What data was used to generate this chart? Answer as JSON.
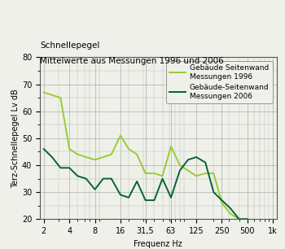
{
  "title_line1": "Schnellepegel",
  "title_line2": "Mittelwerte aus Messungen 1996 und 2006",
  "xlabel": "Frequenz Hz",
  "ylabel": "Terz-Schnellepegel Lv dB",
  "ylim": [
    20,
    80
  ],
  "frequencies": [
    2,
    2.5,
    3.15,
    4,
    5,
    6.3,
    8,
    10,
    12.5,
    16,
    20,
    25,
    31.5,
    40,
    50,
    63,
    80,
    100,
    125,
    160,
    200,
    250,
    315,
    400,
    500
  ],
  "line1996": [
    67,
    66,
    65,
    46,
    44,
    43,
    42,
    43,
    44,
    51,
    46,
    44,
    37,
    37,
    36,
    47,
    40,
    38,
    36,
    37,
    37,
    26,
    22,
    20,
    20
  ],
  "line2006": [
    46,
    43,
    39,
    39,
    36,
    35,
    31,
    35,
    35,
    29,
    28,
    34,
    27,
    27,
    35,
    28,
    38,
    42,
    43,
    41,
    30,
    27,
    24,
    20,
    20
  ],
  "color1996": "#99cc33",
  "color2006": "#006633",
  "legend1": "Gebäude Seitenwand\nMessungen 1996",
  "legend2": "Gebäude-Seitenwand\nMessungen 2006",
  "xtick_labels": [
    "2",
    "4",
    "8",
    "16",
    "31,5",
    "63",
    "125",
    "250",
    "500",
    "1k"
  ],
  "xtick_freqs": [
    2,
    4,
    8,
    16,
    31.5,
    63,
    125,
    250,
    500,
    1000
  ],
  "yticks": [
    20,
    30,
    40,
    50,
    60,
    70,
    80
  ],
  "background_color": "#f0f0ea",
  "grid_color": "#888888",
  "title_fontsize": 7.5,
  "axis_label_fontsize": 7,
  "tick_fontsize": 7,
  "legend_fontsize": 6.5,
  "line_width": 1.4
}
